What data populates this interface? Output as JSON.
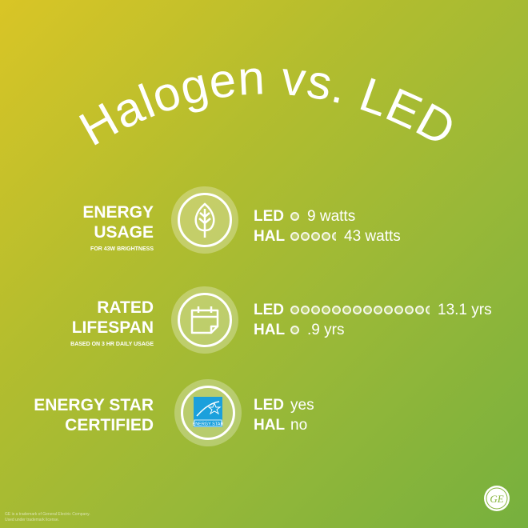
{
  "title": "Halogen vs. LED",
  "sections": [
    {
      "label_lines": [
        "ENERGY",
        "USAGE"
      ],
      "sub": "FOR 43W BRIGHTNESS",
      "icon": "leaf-icon",
      "rows": [
        {
          "tag": "LED",
          "dots": 0.9,
          "value": "9 watts"
        },
        {
          "tag": "HAL",
          "dots": 4.3,
          "value": "43 watts"
        }
      ]
    },
    {
      "label_lines": [
        "RATED",
        "LIFESPAN"
      ],
      "sub": "BASED ON 3 HR DAILY USAGE",
      "icon": "calendar-icon",
      "rows": [
        {
          "tag": "LED",
          "dots": 13.1,
          "value": "13.1 yrs"
        },
        {
          "tag": "HAL",
          "dots": 0.9,
          "value": ".9 yrs"
        }
      ]
    },
    {
      "label_lines": [
        "ENERGY STAR",
        "CERTIFIED"
      ],
      "sub": "",
      "icon": "energy-star-icon",
      "rows": [
        {
          "tag": "LED",
          "dots": 0,
          "value": "yes"
        },
        {
          "tag": "HAL",
          "dots": 0,
          "value": "no"
        }
      ]
    }
  ],
  "energy_star_logo_text": "ENERGY STAR",
  "footer": {
    "line1": "GE is a trademark of General Electric Company.",
    "line2": "Used under trademark license."
  },
  "brand_logo": "GE",
  "colors": {
    "gradient_start": "#d9c526",
    "gradient_end": "#76b03e",
    "energy_star_blue": "#1ba0dc"
  }
}
